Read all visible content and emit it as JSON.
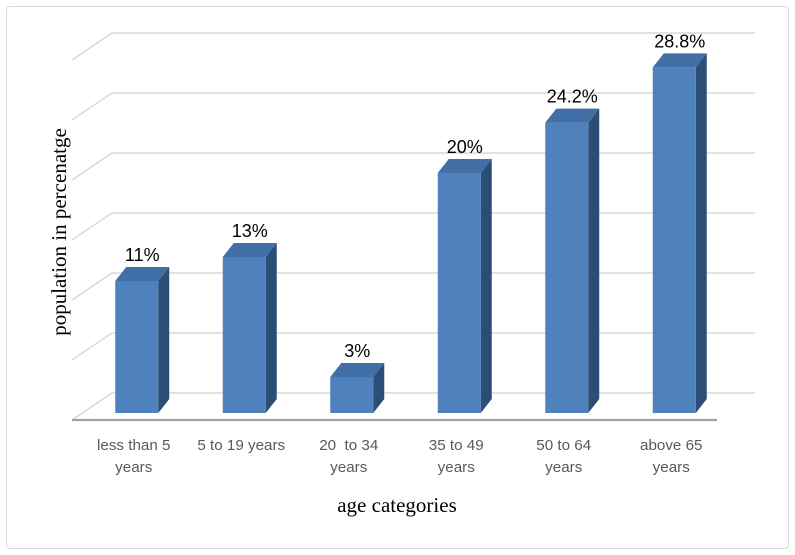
{
  "frame": {
    "background": "#ffffff",
    "border_color": "#d9d9d9"
  },
  "chart_data": {
    "type": "bar",
    "style": "3d-column",
    "title": "",
    "xlabel": "age categories",
    "ylabel": "population in percenatge",
    "categories": [
      [
        "less than 5",
        "years"
      ],
      [
        "5 to 19 years"
      ],
      [
        "20  to 34",
        "years"
      ],
      [
        "35 to 49",
        "years"
      ],
      [
        "50 to 64",
        "years"
      ],
      [
        "above 65",
        "years"
      ]
    ],
    "values": [
      11,
      13,
      3,
      20,
      24.2,
      28.8
    ],
    "data_labels": [
      "11%",
      "13%",
      "3%",
      "20%",
      "24.2%",
      "28.8%"
    ],
    "ylim": [
      0,
      30
    ],
    "gridline_step": 5,
    "y_tick_labels_visible": false,
    "grid": true,
    "legend": "none",
    "colors": {
      "bar_front": "#4f81bd",
      "bar_top": "#416fa6",
      "bar_side": "#2c4d75",
      "gridline": "#d9d9d9",
      "axis_line": "#a1a1a1",
      "category_label": "#595959",
      "data_label": "#000000"
    }
  }
}
